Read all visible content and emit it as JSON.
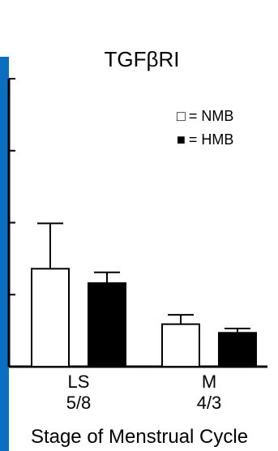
{
  "colors": {
    "side_bar": "#0a6fc2",
    "nmb_fill": "#ffffff",
    "hmb_fill": "#000000",
    "axis": "#000000"
  },
  "chart_data": {
    "type": "bar",
    "title": "TGFβRI",
    "xlabel": "Stage of Menstrual Cycle",
    "ylabel": "",
    "ylim": [
      0,
      4
    ],
    "grid": false,
    "legend_position": "top-right",
    "categories": [
      "LS",
      "M"
    ],
    "category_ns": [
      "5/8",
      "4/3"
    ],
    "legend": [
      {
        "label": "□ = NMB",
        "label_symbol": "□",
        "label_text": "= NMB",
        "fill": "#ffffff"
      },
      {
        "label": "■ = HMB",
        "label_symbol": "■",
        "label_text": "= HMB",
        "fill": "#000000"
      }
    ],
    "series": [
      {
        "name": "NMB",
        "fill": "#ffffff",
        "values": [
          1.36,
          0.59
        ],
        "errors": [
          0.63,
          0.13
        ]
      },
      {
        "name": "HMB",
        "fill": "#000000",
        "values": [
          1.16,
          0.47
        ],
        "errors": [
          0.15,
          0.06
        ]
      }
    ]
  }
}
